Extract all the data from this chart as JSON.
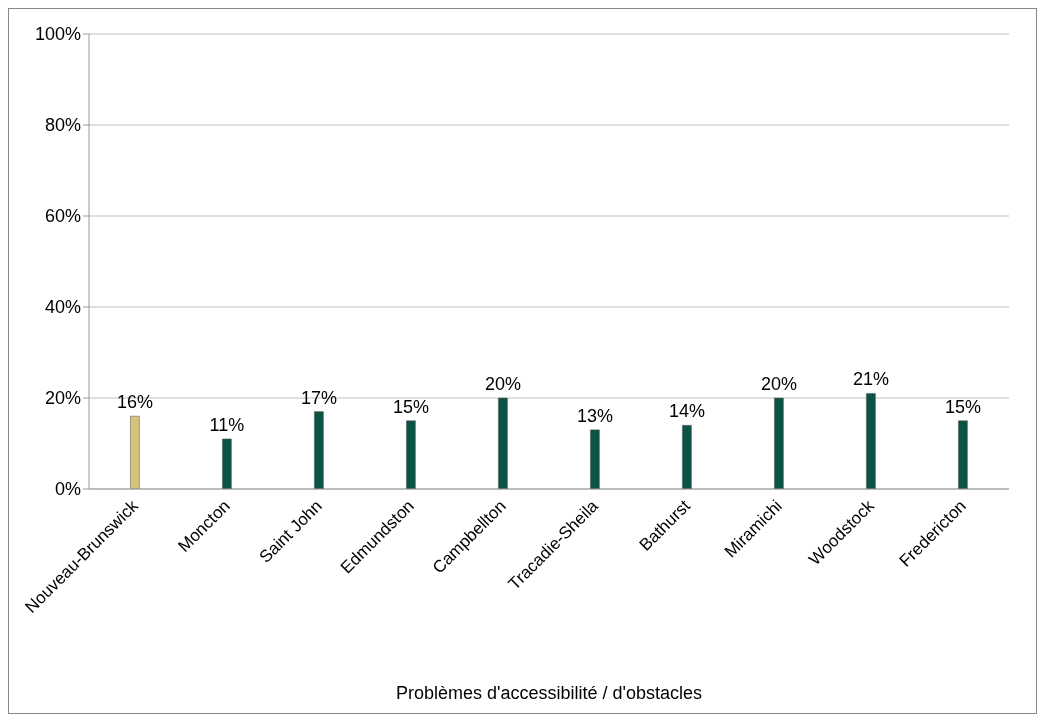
{
  "chart_data": {
    "type": "bar",
    "xlabel": "Problèmes d'accessibilité / d'obstacles",
    "categories": [
      "Nouveau-Brunswick",
      "Moncton",
      "Saint John",
      "Edmundston",
      "Campbellton",
      "Tracadie-Sheila",
      "Bathurst",
      "Miramichi",
      "Woodstock",
      "Fredericton"
    ],
    "values": [
      16,
      11,
      17,
      15,
      20,
      13,
      14,
      20,
      21,
      15
    ],
    "value_labels": [
      "16%",
      "11%",
      "17%",
      "15%",
      "20%",
      "13%",
      "14%",
      "20%",
      "21%",
      "15%"
    ],
    "colors": [
      "#d8c27a",
      "#0b5345",
      "#0b5345",
      "#0b5345",
      "#0b5345",
      "#0b5345",
      "#0b5345",
      "#0b5345",
      "#0b5345",
      "#0b5345"
    ],
    "ylim": [
      0,
      100
    ],
    "yticks": [
      {
        "value": 0,
        "label": "0%"
      },
      {
        "value": 20,
        "label": "20%"
      },
      {
        "value": 40,
        "label": "40%"
      },
      {
        "value": 60,
        "label": "60%"
      },
      {
        "value": 80,
        "label": "80%"
      },
      {
        "value": 100,
        "label": "100%"
      }
    ],
    "grid": "y"
  }
}
